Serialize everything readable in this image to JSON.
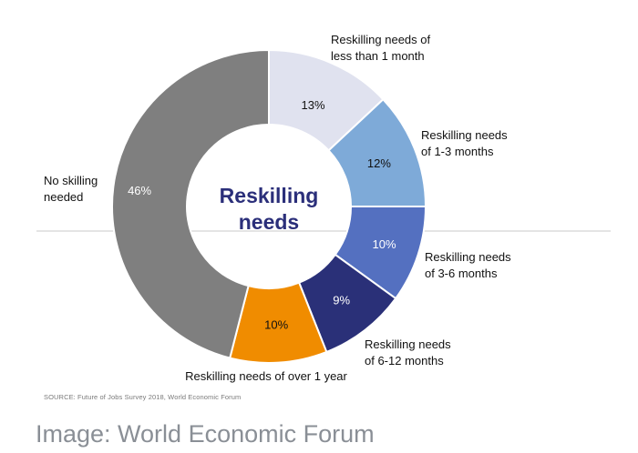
{
  "chart_data": {
    "type": "pie",
    "title": "Reskilling needs",
    "title_lines": [
      "Reskilling",
      "needs"
    ],
    "categories": [
      "Reskilling needs of less than 1 month",
      "Reskilling needs of 1-3 months",
      "Reskilling needs of 3-6 months",
      "Reskilling needs of 6-12 months",
      "Reskilling needs of over 1 year",
      "No skilling needed"
    ],
    "values": [
      13,
      12,
      10,
      9,
      10,
      46
    ],
    "value_labels": [
      "13%",
      "12%",
      "10%",
      "9%",
      "10%",
      "46%"
    ],
    "slice_labels": [
      [
        "Reskilling needs of",
        "less than 1 month"
      ],
      [
        "Reskilling needs",
        "of 1-3 months"
      ],
      [
        "Reskilling needs",
        "of 3-6 months"
      ],
      [
        "Reskilling needs",
        "of 6-12 months"
      ],
      [
        "Reskilling needs of over 1 year"
      ],
      [
        "No skilling",
        "needed"
      ]
    ],
    "colors": [
      "#e0e2ef",
      "#7eaad8",
      "#5470c0",
      "#2a3078",
      "#f08c00",
      "#7f7f7f"
    ],
    "value_label_colors": [
      "#111111",
      "#111111",
      "#ffffff",
      "#ffffff",
      "#111111",
      "#ffffff"
    ],
    "legend": "none"
  },
  "source_note": "SOURCE: Future of Jobs Survey 2018, World Economic Forum",
  "credit": "Image: World Economic Forum"
}
